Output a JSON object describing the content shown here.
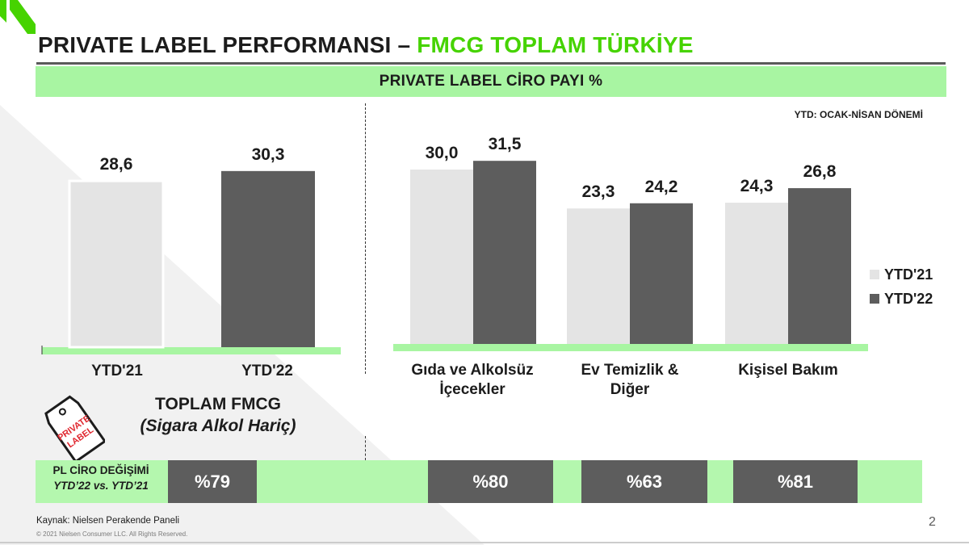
{
  "header": {
    "title_main": "PRIVATE LABEL PERFORMANSI –",
    "title_accent": "FMCG TOPLAM TÜRKİYE",
    "subtitle": "PRIVATE LABEL CİRO PAYI %",
    "period_note": "YTD: OCAK-NİSAN DÖNEMİ"
  },
  "colors": {
    "accent_green": "#46d300",
    "band_green": "#a8f5a2",
    "ytd21": "#e4e4e4",
    "ytd22": "#5d5d5d",
    "dark_box": "#5d5d5d"
  },
  "chart_data": [
    {
      "type": "bar",
      "categories": [
        "YTD'21",
        "YTD'22"
      ],
      "values": [
        28.6,
        30.3
      ],
      "value_labels": [
        "28,6",
        "30,3"
      ],
      "ylim": [
        0,
        40
      ],
      "title": "",
      "caption_line1": "TOPLAM FMCG",
      "caption_line2": "(Sigara Alkol Hariç)"
    },
    {
      "type": "bar",
      "categories": [
        "Gıda ve Alkolsüz İçecekler",
        "Ev Temizlik & Diğer",
        "Kişisel Bakım"
      ],
      "category_lines": [
        [
          "Gıda ve Alkolsüz",
          "İçecekler"
        ],
        [
          "Ev Temizlik &",
          "Diğer"
        ],
        [
          "Kişisel Bakım"
        ]
      ],
      "series": [
        {
          "name": "YTD'21",
          "values": [
            30.0,
            23.3,
            24.3
          ],
          "value_labels": [
            "30,0",
            "23,3",
            "24,3"
          ]
        },
        {
          "name": "YTD'22",
          "values": [
            31.5,
            24.2,
            26.8
          ],
          "value_labels": [
            "31,5",
            "24,2",
            "26,8"
          ]
        }
      ],
      "ylim": [
        0,
        40
      ],
      "legend": "right"
    }
  ],
  "tag": {
    "line1": "PRIVATE",
    "line2": "LABEL"
  },
  "change_row": {
    "label_line1": "PL CİRO DEĞİŞİMİ",
    "label_line2": "YTD’22 vs. YTD’21",
    "values": [
      "%79",
      "%80",
      "%63",
      "%81"
    ]
  },
  "footer": {
    "source": "Kaynak: Nielsen Perakende Paneli",
    "copyright": "© 2021 Nielsen Consumer LLC. All Rights Reserved.",
    "page": "2"
  }
}
